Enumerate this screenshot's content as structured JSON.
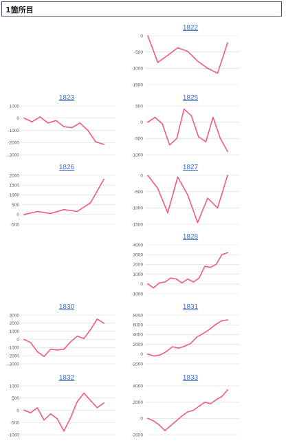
{
  "header": {
    "title": "1箇所目"
  },
  "colors": {
    "line": "#f05a78",
    "link": "#3b6fd1",
    "grid": "#d8d8d8",
    "border": "#4a4a7a"
  },
  "chart_data": [
    {
      "id": "1822",
      "type": "line",
      "title": "1822",
      "ylim": [
        -1500,
        0
      ],
      "yticks": [
        0,
        -500,
        -1000,
        -1500
      ],
      "y": [
        0,
        -820,
        -600,
        -370,
        -480,
        -780,
        -1000,
        -1150,
        -220
      ]
    },
    {
      "id": "1823",
      "type": "line",
      "title": "1823",
      "ylim": [
        -3000,
        1000
      ],
      "yticks": [
        1000,
        0,
        -1000,
        -2000,
        -3000
      ],
      "y": [
        0,
        -300,
        100,
        -400,
        -200,
        -700,
        -780,
        -400,
        -1000,
        -1950,
        -2150
      ]
    },
    {
      "id": "1825",
      "type": "line",
      "title": "1825",
      "ylim": [
        -1000,
        500
      ],
      "yticks": [
        500,
        0,
        -500,
        -1000
      ],
      "y": [
        0,
        150,
        -50,
        -700,
        -500,
        400,
        200,
        -450,
        -600,
        150,
        -500,
        -900
      ]
    },
    {
      "id": "1826",
      "type": "line",
      "title": "1826",
      "ylim": [
        -500,
        2000
      ],
      "yticks": [
        2000,
        1500,
        1000,
        500,
        0,
        -500
      ],
      "y": [
        0,
        150,
        50,
        250,
        150,
        600,
        1800
      ]
    },
    {
      "id": "1827",
      "type": "line",
      "title": "1827",
      "ylim": [
        -1500,
        0
      ],
      "yticks": [
        0,
        -500,
        -1000,
        -1500
      ],
      "y": [
        0,
        -400,
        -1150,
        -50,
        -600,
        -1450,
        -700,
        -1000,
        0
      ]
    },
    {
      "id": "1828",
      "type": "line",
      "title": "1828",
      "ylim": [
        -1000,
        4000
      ],
      "yticks": [
        4000,
        3000,
        2000,
        1000,
        0,
        -1000
      ],
      "y": [
        0,
        -400,
        100,
        200,
        600,
        500,
        100,
        500,
        200,
        600,
        1800,
        1700,
        2000,
        3000,
        3200
      ]
    },
    {
      "id": "1830",
      "type": "line",
      "title": "1830",
      "ylim": [
        -3000,
        3000
      ],
      "yticks": [
        3000,
        2000,
        1000,
        0,
        -1000,
        -2000,
        -3000
      ],
      "y": [
        0,
        -400,
        -1500,
        -2100,
        -1200,
        -1300,
        -1200,
        -300,
        400,
        100,
        1200,
        2500,
        2000
      ]
    },
    {
      "id": "1831",
      "type": "line",
      "title": "1831",
      "ylim": [
        -2000,
        8000
      ],
      "yticks": [
        8000,
        6000,
        4000,
        2000,
        0,
        -2000
      ],
      "y": [
        0,
        -400,
        -200,
        500,
        1500,
        1200,
        1600,
        2200,
        3500,
        4200,
        5000,
        6000,
        6800,
        7000
      ]
    },
    {
      "id": "1832",
      "type": "line",
      "title": "1832",
      "ylim": [
        -1000,
        1000
      ],
      "yticks": [
        1000,
        500,
        0,
        -500,
        -1000
      ],
      "y": [
        0,
        -100,
        100,
        -400,
        -150,
        -350,
        -850,
        -300,
        350,
        700,
        400,
        100,
        300
      ]
    },
    {
      "id": "1833",
      "type": "line",
      "title": "1833",
      "ylim": [
        -2000,
        4000
      ],
      "yticks": [
        4000,
        2000,
        0,
        -2000
      ],
      "y": [
        0,
        -300,
        -800,
        -1500,
        -900,
        -300,
        300,
        800,
        1000,
        1500,
        2000,
        1800,
        2300,
        2700,
        3500
      ]
    }
  ]
}
